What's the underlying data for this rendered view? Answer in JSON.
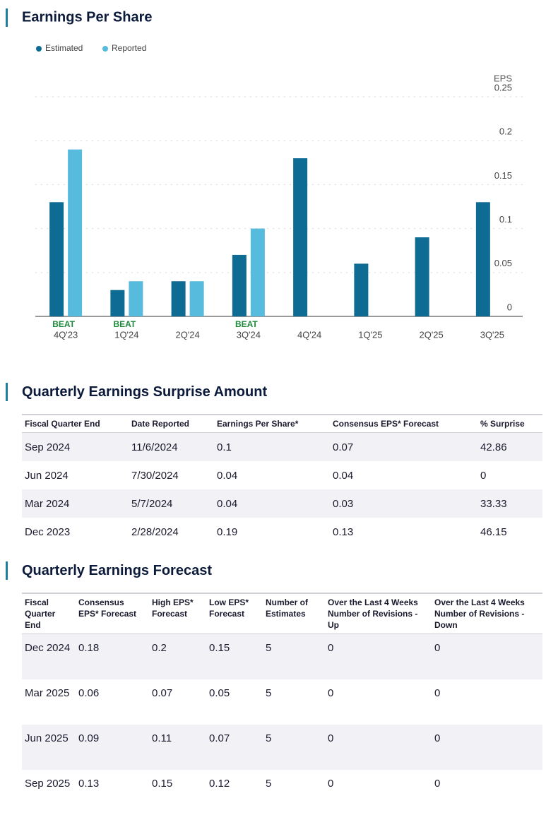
{
  "chart_data": {
    "type": "bar",
    "title": "Earnings Per Share",
    "y_label": "EPS",
    "categories": [
      "4Q'23",
      "1Q'24",
      "2Q'24",
      "3Q'24",
      "4Q'24",
      "1Q'25",
      "2Q'25",
      "3Q'25"
    ],
    "annotations": [
      "BEAT",
      "BEAT",
      null,
      "BEAT",
      null,
      null,
      null,
      null
    ],
    "annotation_color": "#1f8a3c",
    "series": [
      {
        "name": "Estimated",
        "color": "#0e6b93",
        "values": [
          0.13,
          0.03,
          0.04,
          0.07,
          0.18,
          0.06,
          0.09,
          0.13
        ]
      },
      {
        "name": "Reported",
        "color": "#56bbdc",
        "values": [
          0.19,
          0.04,
          0.04,
          0.1,
          null,
          null,
          null,
          null
        ]
      }
    ],
    "ylim": [
      0,
      0.25
    ],
    "yticks": [
      0,
      0.05,
      0.1,
      0.15,
      0.2,
      0.25
    ],
    "grid": true
  },
  "surprise_table": {
    "title": "Quarterly Earnings Surprise Amount",
    "columns": [
      "Fiscal Quarter End",
      "Date Reported",
      "Earnings Per Share*",
      "Consensus EPS* Forecast",
      "% Surprise"
    ],
    "rows": [
      [
        "Sep 2024",
        "11/6/2024",
        0.1,
        0.07,
        42.86
      ],
      [
        "Jun 2024",
        "7/30/2024",
        0.04,
        0.04,
        0
      ],
      [
        "Mar 2024",
        "5/7/2024",
        0.04,
        0.03,
        33.33
      ],
      [
        "Dec 2023",
        "2/28/2024",
        0.19,
        0.13,
        46.15
      ]
    ]
  },
  "forecast_table": {
    "title": "Quarterly Earnings Forecast",
    "columns": [
      "Fiscal Quarter End",
      "Consensus EPS* Forecast",
      "High EPS* Forecast",
      "Low EPS* Forecast",
      "Number of Estimates",
      "Over the Last 4 Weeks Number of Revisions - Up",
      "Over the Last 4 Weeks Number of Revisions - Down"
    ],
    "rows": [
      [
        "Dec 2024",
        0.18,
        0.2,
        0.15,
        5,
        0,
        0
      ],
      [
        "Mar 2025",
        0.06,
        0.07,
        0.05,
        5,
        0,
        0
      ],
      [
        "Jun 2025",
        0.09,
        0.11,
        0.07,
        5,
        0,
        0
      ],
      [
        "Sep 2025",
        0.13,
        0.15,
        0.12,
        5,
        0,
        0
      ]
    ]
  }
}
